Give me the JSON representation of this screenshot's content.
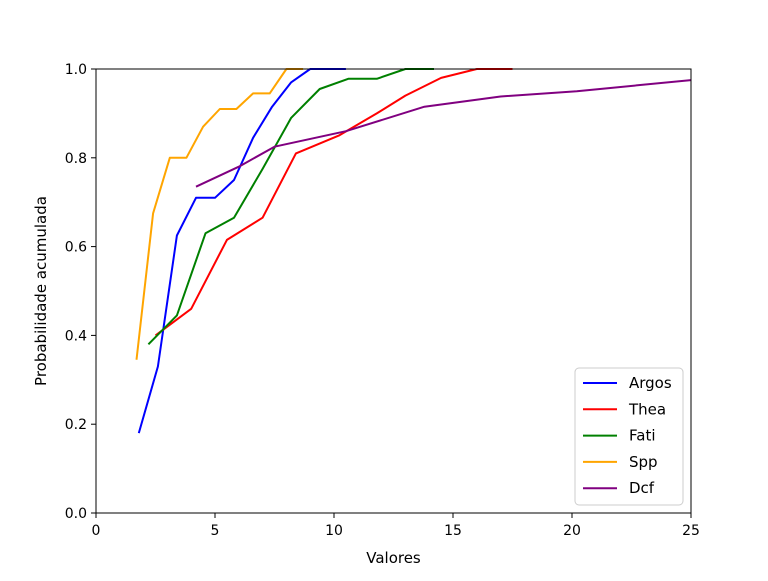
{
  "chart_data": {
    "type": "line",
    "title": "",
    "xlabel": "Valores",
    "ylabel": "Probabilidade acumulada",
    "xlim": [
      0,
      25
    ],
    "ylim": [
      0,
      1
    ],
    "x_ticks": [
      "0",
      "5",
      "10",
      "15",
      "20",
      "25"
    ],
    "y_ticks": [
      "0.0",
      "0.2",
      "0.4",
      "0.6",
      "0.8",
      "1.0"
    ],
    "x_tick_values": [
      0,
      5,
      10,
      15,
      20,
      25
    ],
    "y_tick_values": [
      0,
      0.2,
      0.4,
      0.6,
      0.8,
      1.0
    ],
    "grid": false,
    "legend_position": "lower-right",
    "series": [
      {
        "name": "Argos",
        "color": "#0000ff",
        "points": [
          [
            1.8,
            0.18
          ],
          [
            2.6,
            0.33
          ],
          [
            3.4,
            0.625
          ],
          [
            4.2,
            0.71
          ],
          [
            5.0,
            0.71
          ],
          [
            5.8,
            0.75
          ],
          [
            6.6,
            0.845
          ],
          [
            7.4,
            0.915
          ],
          [
            8.2,
            0.97
          ],
          [
            9.0,
            1.0
          ],
          [
            10.5,
            1.0
          ]
        ]
      },
      {
        "name": "Thea",
        "color": "#ff0000",
        "points": [
          [
            2.5,
            0.4
          ],
          [
            4.0,
            0.46
          ],
          [
            5.5,
            0.615
          ],
          [
            7.0,
            0.665
          ],
          [
            8.4,
            0.81
          ],
          [
            10.2,
            0.85
          ],
          [
            11.8,
            0.9
          ],
          [
            13.0,
            0.94
          ],
          [
            14.5,
            0.98
          ],
          [
            16.0,
            1.0
          ],
          [
            17.5,
            1.0
          ]
        ]
      },
      {
        "name": "Fati",
        "color": "#008000",
        "points": [
          [
            2.2,
            0.38
          ],
          [
            3.4,
            0.445
          ],
          [
            4.6,
            0.63
          ],
          [
            5.8,
            0.665
          ],
          [
            7.0,
            0.775
          ],
          [
            8.2,
            0.89
          ],
          [
            9.4,
            0.955
          ],
          [
            10.6,
            0.978
          ],
          [
            11.8,
            0.978
          ],
          [
            13.0,
            1.0
          ],
          [
            14.2,
            1.0
          ]
        ]
      },
      {
        "name": "Spp",
        "color": "#ffa500",
        "points": [
          [
            1.7,
            0.345
          ],
          [
            2.4,
            0.675
          ],
          [
            3.1,
            0.8
          ],
          [
            3.8,
            0.8
          ],
          [
            4.5,
            0.87
          ],
          [
            5.2,
            0.91
          ],
          [
            5.9,
            0.91
          ],
          [
            6.6,
            0.945
          ],
          [
            7.3,
            0.945
          ],
          [
            8.0,
            1.0
          ],
          [
            8.7,
            1.0
          ]
        ]
      },
      {
        "name": "Dcf",
        "color": "#800080",
        "points": [
          [
            4.2,
            0.735
          ],
          [
            6.0,
            0.78
          ],
          [
            7.5,
            0.825
          ],
          [
            10.5,
            0.86
          ],
          [
            13.8,
            0.915
          ],
          [
            17.0,
            0.938
          ],
          [
            20.2,
            0.95
          ],
          [
            25.0,
            0.975
          ]
        ]
      }
    ]
  }
}
